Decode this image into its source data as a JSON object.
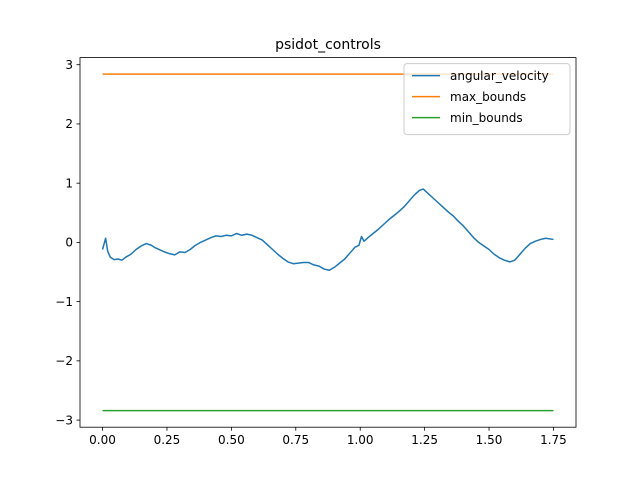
{
  "chart_data": {
    "type": "line",
    "title": "psidot_controls",
    "xlabel": "",
    "ylabel": "",
    "xlim": [
      -0.0875,
      1.8375
    ],
    "ylim": [
      -3.12,
      3.12
    ],
    "x_ticks": [
      0.0,
      0.25,
      0.5,
      0.75,
      1.0,
      1.25,
      1.5,
      1.75
    ],
    "x_tick_labels": [
      "0.00",
      "0.25",
      "0.50",
      "0.75",
      "1.00",
      "1.25",
      "1.50",
      "1.75"
    ],
    "y_ticks": [
      -3,
      -2,
      -1,
      0,
      1,
      2,
      3
    ],
    "y_tick_labels": [
      "−3",
      "−2",
      "−1",
      "0",
      "1",
      "2",
      "3"
    ],
    "grid": false,
    "legend_position": "top-right",
    "series": [
      {
        "name": "angular_velocity",
        "color": "#1f77b4",
        "x": [
          0.0,
          0.012,
          0.02,
          0.03,
          0.045,
          0.06,
          0.075,
          0.09,
          0.11,
          0.13,
          0.15,
          0.17,
          0.19,
          0.2,
          0.22,
          0.24,
          0.26,
          0.28,
          0.3,
          0.32,
          0.34,
          0.36,
          0.38,
          0.4,
          0.42,
          0.44,
          0.46,
          0.48,
          0.5,
          0.52,
          0.54,
          0.56,
          0.58,
          0.6,
          0.62,
          0.64,
          0.66,
          0.68,
          0.7,
          0.72,
          0.74,
          0.76,
          0.78,
          0.8,
          0.82,
          0.84,
          0.86,
          0.88,
          0.9,
          0.92,
          0.94,
          0.96,
          0.98,
          0.995,
          1.005,
          1.015,
          1.03,
          1.05,
          1.07,
          1.09,
          1.11,
          1.13,
          1.15,
          1.17,
          1.19,
          1.21,
          1.23,
          1.245,
          1.26,
          1.28,
          1.3,
          1.32,
          1.34,
          1.36,
          1.38,
          1.4,
          1.42,
          1.44,
          1.46,
          1.48,
          1.5,
          1.52,
          1.54,
          1.56,
          1.58,
          1.6,
          1.62,
          1.64,
          1.66,
          1.68,
          1.7,
          1.72,
          1.75
        ],
        "y": [
          -0.12,
          0.07,
          -0.15,
          -0.25,
          -0.29,
          -0.28,
          -0.3,
          -0.25,
          -0.2,
          -0.12,
          -0.06,
          -0.02,
          -0.05,
          -0.08,
          -0.12,
          -0.16,
          -0.19,
          -0.21,
          -0.16,
          -0.17,
          -0.12,
          -0.05,
          0.0,
          0.04,
          0.08,
          0.11,
          0.1,
          0.12,
          0.11,
          0.15,
          0.12,
          0.14,
          0.12,
          0.08,
          0.04,
          -0.04,
          -0.12,
          -0.2,
          -0.27,
          -0.33,
          -0.36,
          -0.35,
          -0.34,
          -0.34,
          -0.38,
          -0.4,
          -0.45,
          -0.47,
          -0.42,
          -0.35,
          -0.28,
          -0.18,
          -0.08,
          -0.05,
          0.1,
          0.02,
          0.08,
          0.15,
          0.22,
          0.3,
          0.38,
          0.45,
          0.52,
          0.6,
          0.7,
          0.8,
          0.88,
          0.9,
          0.84,
          0.76,
          0.68,
          0.6,
          0.52,
          0.45,
          0.36,
          0.28,
          0.18,
          0.08,
          0.0,
          -0.06,
          -0.12,
          -0.2,
          -0.26,
          -0.3,
          -0.33,
          -0.3,
          -0.2,
          -0.1,
          -0.02,
          0.02,
          0.05,
          0.07,
          0.05
        ]
      },
      {
        "name": "max_bounds",
        "color": "#ff7f0e",
        "x": [
          0.0,
          1.75
        ],
        "y": [
          2.84,
          2.84
        ]
      },
      {
        "name": "min_bounds",
        "color": "#2ca02c",
        "x": [
          0.0,
          1.75
        ],
        "y": [
          -2.84,
          -2.84
        ]
      }
    ]
  }
}
